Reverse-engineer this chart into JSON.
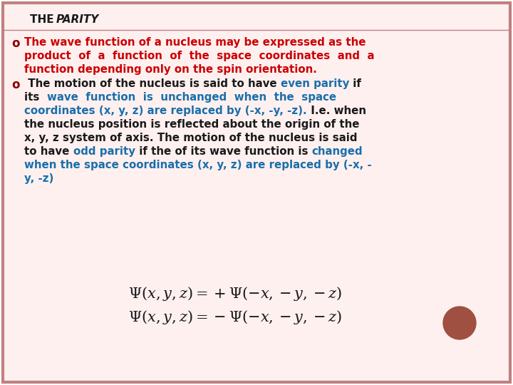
{
  "bg_color": "#FFFFFF",
  "bg_fill": "#FFF0F0",
  "border_color": "#C08080",
  "bullet_color": "#8B0000",
  "red_color": "#CC0000",
  "blue_color": "#1A6FAA",
  "black_color": "#1A1A1A",
  "circle_color": "#A05040",
  "title_normal": "THE ",
  "title_italic": "PARITY",
  "p1_l1": "The wave function of a nucleus may be expressed as the",
  "p1_l2": "product  of  a  function  of  the  space  coordinates  and  a",
  "p1_l3": "function depending only on the spin orientation.",
  "p2_l1_blk": " The motion of the nucleus is said to have ",
  "p2_l1_blu": "even parity",
  "p2_l1_blk2": " if",
  "p2_l2_blk": "its  ",
  "p2_l2_blu": "wave  function  is  unchanged  when  the  space",
  "p2_l3_blu": "coordinates (x, y, z) are replaced by (-x, -y, -z).",
  "p2_l3_blk": " I.e. when",
  "p2_l4": "the nucleus position is reflected about the origin of the",
  "p2_l5": "x, y, z system of axis. The motion of the nucleus is said",
  "p2_l6_blk1": "to have ",
  "p2_l6_blu1": "odd parity",
  "p2_l6_blk2": " if the of its wave function is ",
  "p2_l6_blu2": "changed",
  "p2_l7_blu": "when the space coordinates (x, y, z) are replaced by (-x, -",
  "p2_l8_blu": "y, -z)"
}
